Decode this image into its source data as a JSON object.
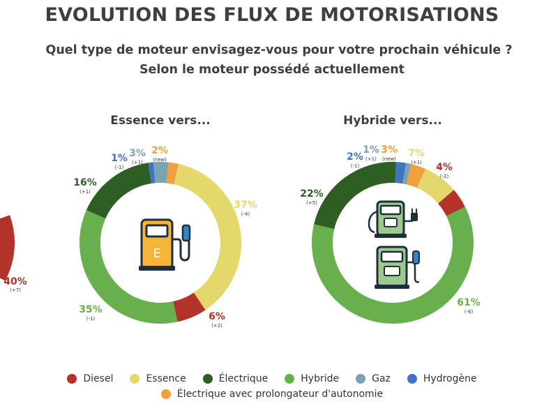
{
  "header": {
    "title": "EVOLUTION DES FLUX DE MOTORISATIONS",
    "question": "Quel type de moteur envisagez-vous pour votre prochain véhicule ?",
    "subtitle": "Selon le moteur possédé actuellement"
  },
  "colors": {
    "Diesel": "#b3322a",
    "Essence": "#e5d86b",
    "Électrique": "#2f5e24",
    "Hybride": "#67b04d",
    "Gaz": "#7da3b3",
    "Hydrogène": "#3f74c4",
    "Électrique avec prolongateur d'autonomie": "#f2a03d"
  },
  "legend": {
    "row1": [
      "Diesel",
      "Essence",
      "Électrique",
      "Hybride",
      "Gaz",
      "Hydrogène"
    ],
    "row2": [
      "Électrique avec prolongateur d'autonomie"
    ]
  },
  "chart_data": [
    {
      "type": "pie",
      "title": "Essence vers...",
      "icon": "fuel-pump-e-icon",
      "slices": [
        {
          "label": "Essence",
          "value": 37,
          "change": "(-4)"
        },
        {
          "label": "Diesel",
          "value": 6,
          "change": "(+2)"
        },
        {
          "label": "Hybride",
          "value": 35,
          "change": "(-1)"
        },
        {
          "label": "Électrique",
          "value": 16,
          "change": "(+1)"
        },
        {
          "label": "Hydrogène",
          "value": 1,
          "change": "(-1)"
        },
        {
          "label": "Gaz",
          "value": 3,
          "change": "(+1)"
        },
        {
          "label": "Électrique avec prolongateur d'autonomie",
          "value": 2,
          "change": "(new)"
        }
      ]
    },
    {
      "type": "pie",
      "title": "Hybride vers...",
      "icon": "hybrid-pumps-icon",
      "slices": [
        {
          "label": "Essence",
          "value": 7,
          "change": "(+1)"
        },
        {
          "label": "Diesel",
          "value": 4,
          "change": "(-2)"
        },
        {
          "label": "Hybride",
          "value": 61,
          "change": "(-6)"
        },
        {
          "label": "Électrique",
          "value": 22,
          "change": "(+5)"
        },
        {
          "label": "Hydrogène",
          "value": 2,
          "change": "(-1)"
        },
        {
          "label": "Gaz",
          "value": 1,
          "change": "(+1)"
        },
        {
          "label": "Électrique avec prolongateur d'autonomie",
          "value": 3,
          "change": "(new)"
        }
      ]
    },
    {
      "type": "pie",
      "title": "",
      "partial": "left",
      "slices": [
        {
          "label": "Diesel",
          "value": 40,
          "change": "(+7)"
        }
      ]
    }
  ]
}
